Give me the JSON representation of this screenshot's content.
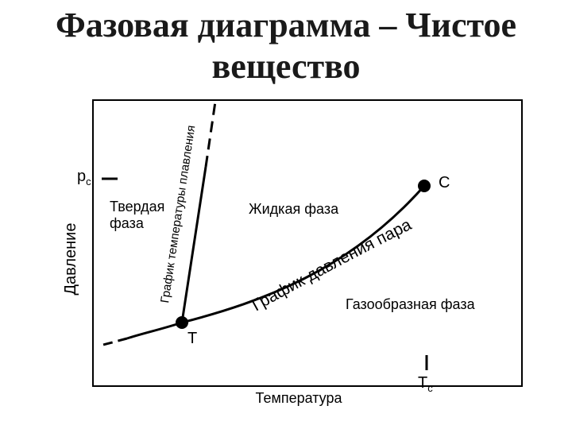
{
  "title": {
    "line1": "Фазовая диаграмма – Чистое",
    "line2": "вещество"
  },
  "axes": {
    "y_label": "Давление",
    "x_label": "Температура",
    "y_tick_label": "p",
    "y_tick_subscript": "c",
    "x_tick_label": "T",
    "x_tick_subscript": "c"
  },
  "regions": {
    "solid_line1": "Твердая",
    "solid_line2": "фаза",
    "liquid": "Жидкая фаза",
    "gas": "Газообразная фаза"
  },
  "curves": {
    "melting": "График температуры плавления",
    "vapor": "График давления пара"
  },
  "points": {
    "critical": "C",
    "triple": "T"
  },
  "colors": {
    "line": "#000000",
    "title": "#1a1a1a",
    "background": "#ffffff"
  }
}
